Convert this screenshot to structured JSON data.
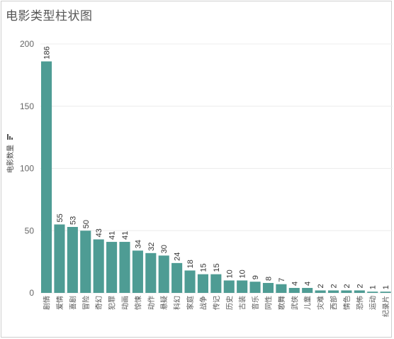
{
  "chart_data": {
    "type": "bar",
    "title": "电影类型柱状图",
    "ylabel": "电影数量",
    "xlabel": "",
    "ylim": [
      0,
      200
    ],
    "yticks": [
      0,
      50,
      100,
      150,
      200
    ],
    "grid": true,
    "bar_color": "#4e9c94",
    "categories": [
      "剧情",
      "爱情",
      "喜剧",
      "冒险",
      "奇幻",
      "犯罪",
      "动画",
      "惊悚",
      "动作",
      "悬疑",
      "科幻",
      "家庭",
      "战争",
      "传记",
      "历史",
      "古装",
      "音乐",
      "同性",
      "歌舞",
      "武侠",
      "儿童",
      "灾难",
      "西部",
      "情色",
      "恐怖",
      "运动",
      "纪录片"
    ],
    "values": [
      186,
      55,
      53,
      50,
      43,
      41,
      41,
      34,
      32,
      30,
      24,
      18,
      15,
      15,
      10,
      10,
      9,
      8,
      7,
      4,
      4,
      2,
      2,
      2,
      2,
      1,
      1
    ]
  }
}
